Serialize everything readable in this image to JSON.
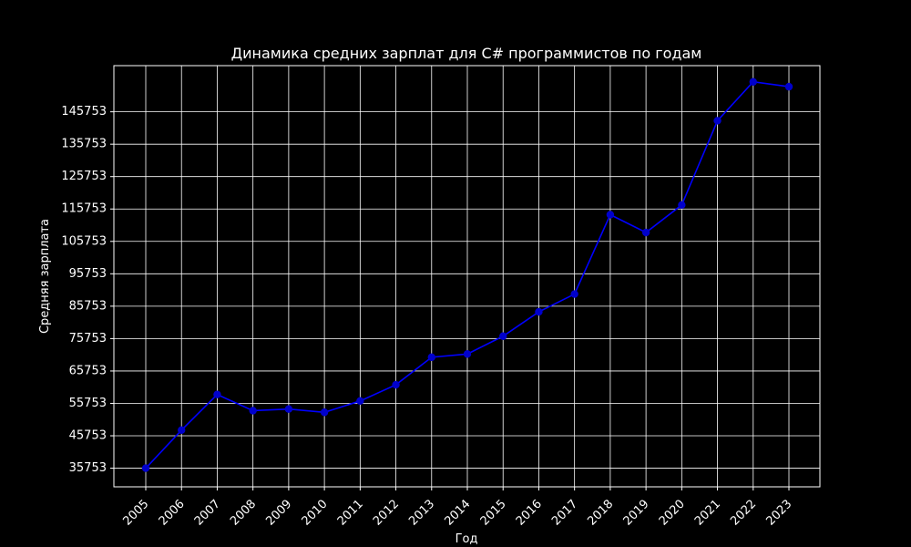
{
  "chart_data": {
    "type": "line",
    "title": "Динамика средних зарплат для C# программистов по годам",
    "xlabel": "Год",
    "ylabel": "Средняя зарплата",
    "categories": [
      "2005",
      "2006",
      "2007",
      "2008",
      "2009",
      "2010",
      "2011",
      "2012",
      "2013",
      "2014",
      "2015",
      "2016",
      "2017",
      "2018",
      "2019",
      "2020",
      "2021",
      "2022",
      "2023"
    ],
    "series": [
      {
        "values": [
          35753,
          47500,
          58500,
          53500,
          54000,
          53000,
          56500,
          61500,
          70000,
          71000,
          76500,
          84000,
          89500,
          114000,
          108500,
          117000,
          143000,
          155000,
          153500
        ]
      }
    ],
    "yticks": [
      "35753",
      "45753",
      "55753",
      "65753",
      "75753",
      "85753",
      "95753",
      "105753",
      "115753",
      "125753",
      "135753",
      "145753"
    ],
    "ylim": [
      30000,
      160000
    ],
    "grid": true,
    "colors": {
      "background": "#000000",
      "line": "#0000ff",
      "marker": "#0000cc",
      "text": "#ffffff",
      "grid": "#ffffff"
    }
  }
}
